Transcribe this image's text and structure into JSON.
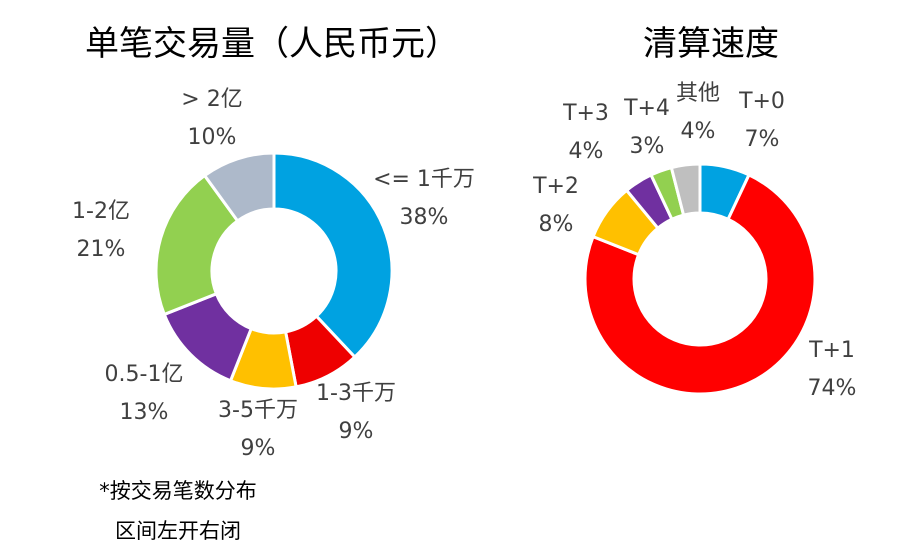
{
  "chart_data": [
    {
      "type": "pie",
      "style": "donut",
      "title": "单笔交易量（人民币元）",
      "note": [
        "*按交易笔数分布",
        "区间左开右闭"
      ],
      "slices": [
        {
          "label": "<= 1千万",
          "value": 38,
          "value_label": "38%",
          "color": "#00a2e1"
        },
        {
          "label": "1-3千万",
          "value": 9,
          "value_label": "9%",
          "color": "#ee0000"
        },
        {
          "label": "3-5千万",
          "value": 9,
          "value_label": "9%",
          "color": "#ffc000"
        },
        {
          "label": "0.5-1亿",
          "value": 13,
          "value_label": "13%",
          "color": "#7030a0"
        },
        {
          "label": "1-2亿",
          "value": 21,
          "value_label": "21%",
          "color": "#92d050"
        },
        {
          "label": "> 2亿",
          "value": 10,
          "value_label": "10%",
          "color": "#adb9ca"
        }
      ]
    },
    {
      "type": "pie",
      "style": "donut",
      "title": "清算速度",
      "slices": [
        {
          "label": "T+0",
          "value": 7,
          "value_label": "7%",
          "color": "#00a2e1"
        },
        {
          "label": "T+1",
          "value": 74,
          "value_label": "74%",
          "color": "#ff0000"
        },
        {
          "label": "T+2",
          "value": 8,
          "value_label": "8%",
          "color": "#ffc000"
        },
        {
          "label": "T+3",
          "value": 4,
          "value_label": "4%",
          "color": "#7030a0"
        },
        {
          "label": "T+4",
          "value": 3,
          "value_label": "3%",
          "color": "#92d050"
        },
        {
          "label": "其他",
          "value": 4,
          "value_label": "4%",
          "color": "#bfbfbf"
        }
      ]
    }
  ]
}
